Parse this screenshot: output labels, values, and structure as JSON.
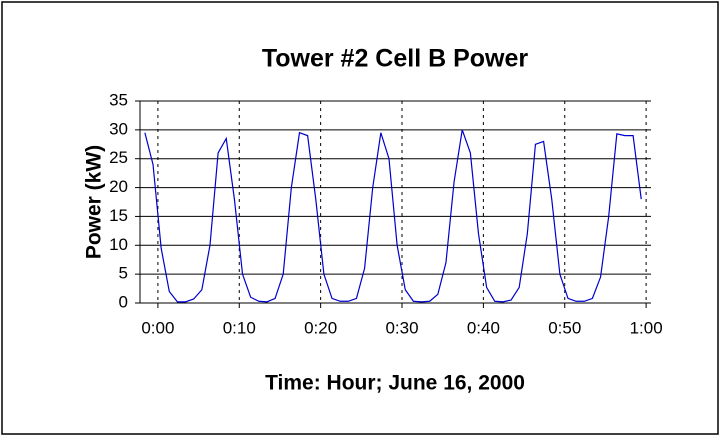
{
  "chart_data": {
    "type": "line",
    "title": "Tower #2 Cell B Power",
    "x_label": "Time: Hour; June 16, 2000",
    "y_label": "Power (kW)",
    "x": [
      -1.6,
      -0.6,
      0.4,
      1.4,
      2.4,
      3.4,
      4.4,
      5.4,
      6.4,
      7.4,
      8.4,
      9.4,
      10.4,
      11.4,
      12.4,
      13.4,
      14.4,
      15.4,
      16.4,
      17.4,
      18.4,
      19.4,
      20.4,
      21.4,
      22.4,
      23.4,
      24.4,
      25.4,
      26.4,
      27.4,
      28.4,
      29.4,
      30.4,
      31.4,
      32.4,
      33.4,
      34.4,
      35.4,
      36.4,
      37.4,
      38.4,
      39.4,
      40.4,
      41.4,
      42.4,
      43.4,
      44.4,
      45.4,
      46.4,
      47.4,
      48.4,
      49.4,
      50.4,
      51.4,
      52.4,
      53.4,
      54.4,
      55.4,
      56.4,
      57.4,
      58.4,
      59.4
    ],
    "series": [
      {
        "color": "#0000cc",
        "values": [
          29.5,
          24,
          9.5,
          2,
          0.2,
          0.2,
          0.7,
          2.3,
          10,
          26,
          28.5,
          18,
          5,
          1,
          0.3,
          0.2,
          0.8,
          5,
          20,
          29.5,
          29,
          18,
          5,
          0.8,
          0.3,
          0.3,
          0.8,
          6,
          20,
          29.5,
          25,
          10,
          2.3,
          0.3,
          0.2,
          0.3,
          1.5,
          7,
          21,
          30,
          26,
          12,
          2.7,
          0.3,
          0.2,
          0.5,
          2.7,
          12,
          27.5,
          28,
          18,
          5,
          0.8,
          0.3,
          0.3,
          0.8,
          4.5,
          15,
          29.3,
          29,
          29,
          18
        ]
      }
    ],
    "xlim": [
      -2.2,
      60.6
    ],
    "xticks": [
      {
        "value": 0,
        "label": "0:00"
      },
      {
        "value": 10,
        "label": "0:10"
      },
      {
        "value": 20,
        "label": "0:20"
      },
      {
        "value": 30,
        "label": "0:30"
      },
      {
        "value": 40,
        "label": "0:40"
      },
      {
        "value": 50,
        "label": "0:50"
      },
      {
        "value": 60,
        "label": "1:00"
      }
    ],
    "ylim": [
      0,
      35
    ],
    "yticks": [
      0,
      5,
      10,
      15,
      20,
      25,
      30,
      35
    ],
    "grid": true
  }
}
